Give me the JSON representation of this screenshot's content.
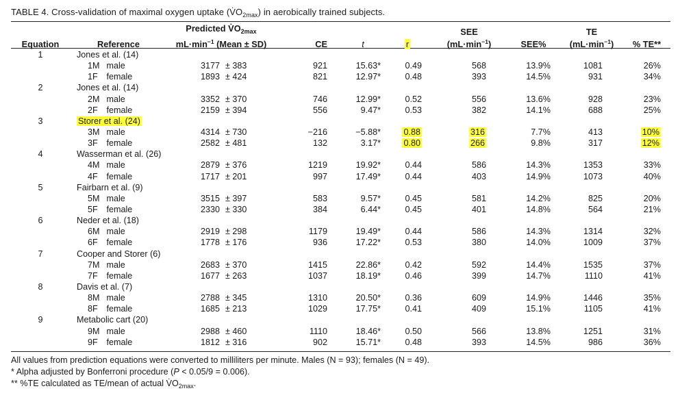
{
  "caption": {
    "prefix": "TABLE 4. Cross-validation of maximal oxygen uptake (",
    "vo2": "V̇O",
    "vo2_sub": "2max",
    "suffix": ") in aerobically trained subjects."
  },
  "header": {
    "equation": "Equation",
    "reference": "Reference",
    "predicted_line1": "Predicted V̇O",
    "predicted_sub": "2max",
    "predicted_line2_a": "mL·min",
    "predicted_line2_sup": "−1",
    "predicted_line2_b": " (Mean ± SD)",
    "ce": "CE",
    "t": "t",
    "r": "r",
    "see_line1": "SEE",
    "see_line2_a": "(mL·min",
    "see_line2_sup": "−1",
    "see_line2_b": ")",
    "see_pct": "SEE%",
    "te_line1": "TE",
    "te_line2_a": "(mL·min",
    "te_line2_sup": "−1",
    "te_line2_b": ")",
    "te_pct": "% TE**"
  },
  "groups": [
    {
      "equation": "1",
      "reference": "Jones et al. (14)",
      "rows": [
        {
          "code": "1M",
          "sex": "male",
          "mean": "3177",
          "sd": "± 383",
          "ce": "921",
          "t": "15.63*",
          "r": "0.49",
          "see": "568",
          "see_pct": "13.9%",
          "te": "1081",
          "te_pct": "26%"
        },
        {
          "code": "1F",
          "sex": "female",
          "mean": "1893",
          "sd": "± 424",
          "ce": "821",
          "t": "12.97*",
          "r": "0.48",
          "see": "393",
          "see_pct": "14.5%",
          "te": "931",
          "te_pct": "34%"
        }
      ]
    },
    {
      "equation": "2",
      "reference": "Jones et al. (14)",
      "rows": [
        {
          "code": "2M",
          "sex": "male",
          "mean": "3352",
          "sd": "± 370",
          "ce": "746",
          "t": "12.99*",
          "r": "0.52",
          "see": "556",
          "see_pct": "13.6%",
          "te": "928",
          "te_pct": "23%"
        },
        {
          "code": "2F",
          "sex": "female",
          "mean": "2159",
          "sd": "± 394",
          "ce": "556",
          "t": "9.47*",
          "r": "0.53",
          "see": "382",
          "see_pct": "14.1%",
          "te": "688",
          "te_pct": "25%"
        }
      ]
    },
    {
      "equation": "3",
      "reference": "Storer et al. (24)",
      "rows": [
        {
          "code": "3M",
          "sex": "male",
          "mean": "4314",
          "sd": "± 730",
          "ce": "−216",
          "t": "−5.88*",
          "r": "0.88",
          "see": "316",
          "see_pct": "7.7%",
          "te": "413",
          "te_pct": "10%"
        },
        {
          "code": "3F",
          "sex": "female",
          "mean": "2582",
          "sd": "± 481",
          "ce": "132",
          "t": "3.17*",
          "r": "0.80",
          "see": "266",
          "see_pct": "9.8%",
          "te": "317",
          "te_pct": "12%"
        }
      ]
    },
    {
      "equation": "4",
      "reference": "Wasserman et al. (26)",
      "rows": [
        {
          "code": "4M",
          "sex": "male",
          "mean": "2879",
          "sd": "± 376",
          "ce": "1219",
          "t": "19.92*",
          "r": "0.44",
          "see": "586",
          "see_pct": "14.3%",
          "te": "1353",
          "te_pct": "33%"
        },
        {
          "code": "4F",
          "sex": "female",
          "mean": "1717",
          "sd": "± 201",
          "ce": "997",
          "t": "17.49*",
          "r": "0.44",
          "see": "403",
          "see_pct": "14.9%",
          "te": "1073",
          "te_pct": "40%"
        }
      ]
    },
    {
      "equation": "5",
      "reference": "Fairbarn et al. (9)",
      "rows": [
        {
          "code": "5M",
          "sex": "male",
          "mean": "3515",
          "sd": "± 397",
          "ce": "583",
          "t": "9.57*",
          "r": "0.45",
          "see": "581",
          "see_pct": "14.2%",
          "te": "825",
          "te_pct": "20%"
        },
        {
          "code": "5F",
          "sex": "female",
          "mean": "2330",
          "sd": "± 330",
          "ce": "384",
          "t": "6.44*",
          "r": "0.45",
          "see": "401",
          "see_pct": "14.8%",
          "te": "564",
          "te_pct": "21%"
        }
      ]
    },
    {
      "equation": "6",
      "reference": "Neder et al. (18)",
      "rows": [
        {
          "code": "6M",
          "sex": "male",
          "mean": "2919",
          "sd": "± 298",
          "ce": "1179",
          "t": "19.49*",
          "r": "0.44",
          "see": "586",
          "see_pct": "14.3%",
          "te": "1314",
          "te_pct": "32%"
        },
        {
          "code": "6F",
          "sex": "female",
          "mean": "1778",
          "sd": "± 176",
          "ce": "936",
          "t": "17.22*",
          "r": "0.53",
          "see": "380",
          "see_pct": "14.0%",
          "te": "1009",
          "te_pct": "37%"
        }
      ]
    },
    {
      "equation": "7",
      "reference": "Cooper and Storer (6)",
      "rows": [
        {
          "code": "7M",
          "sex": "male",
          "mean": "2683",
          "sd": "± 370",
          "ce": "1415",
          "t": "22.86*",
          "r": "0.42",
          "see": "592",
          "see_pct": "14.4%",
          "te": "1535",
          "te_pct": "37%"
        },
        {
          "code": "7F",
          "sex": "female",
          "mean": "1677",
          "sd": "± 263",
          "ce": "1037",
          "t": "18.19*",
          "r": "0.46",
          "see": "399",
          "see_pct": "14.7%",
          "te": "1110",
          "te_pct": "41%"
        }
      ]
    },
    {
      "equation": "8",
      "reference": "Davis et al. (7)",
      "rows": [
        {
          "code": "8M",
          "sex": "male",
          "mean": "2788",
          "sd": "± 345",
          "ce": "1310",
          "t": "20.50*",
          "r": "0.36",
          "see": "609",
          "see_pct": "14.9%",
          "te": "1446",
          "te_pct": "35%"
        },
        {
          "code": "8F",
          "sex": "female",
          "mean": "1685",
          "sd": "± 213",
          "ce": "1029",
          "t": "17.75*",
          "r": "0.41",
          "see": "409",
          "see_pct": "15.1%",
          "te": "1105",
          "te_pct": "41%"
        }
      ]
    },
    {
      "equation": "9",
      "reference": "Metabolic cart (20)",
      "rows": [
        {
          "code": "9M",
          "sex": "male",
          "mean": "2988",
          "sd": "± 460",
          "ce": "1110",
          "t": "18.46*",
          "r": "0.50",
          "see": "566",
          "see_pct": "13.8%",
          "te": "1251",
          "te_pct": "31%"
        },
        {
          "code": "9F",
          "sex": "female",
          "mean": "1812",
          "sd": "± 316",
          "ce": "902",
          "t": "15.71*",
          "r": "0.48",
          "see": "393",
          "see_pct": "14.5%",
          "te": "986",
          "te_pct": "36%"
        }
      ]
    }
  ],
  "highlight": {
    "color": "#ffff33",
    "reference_group": "3",
    "cells": [
      "r",
      "see",
      "te_pct"
    ]
  },
  "footnotes": {
    "line1": "All values from prediction equations were converted to milliliters per minute. Males (N = 93); females (N = 49).",
    "line2_a": "* Alpha adjusted by Bonferroni procedure (",
    "line2_p": "P",
    "line2_b": " < 0.05/9 = 0.006).",
    "line3_a": "** %TE calculated as TE/mean of actual V̇O",
    "line3_sub": "2max",
    "line3_b": "."
  }
}
